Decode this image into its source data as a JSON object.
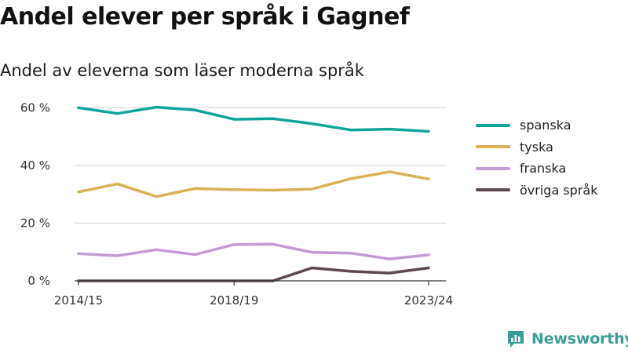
{
  "title": "Andel elever per språk i Gagnef",
  "subtitle": "Andel av eleverna som läser moderna språk",
  "brand": {
    "name": "Newsworthy",
    "icon": "chart-logo-icon",
    "color": "#3a9e97"
  },
  "chart_data": {
    "type": "line",
    "x": [
      "2014/15",
      "2015/16",
      "2016/17",
      "2017/18",
      "2018/19",
      "2019/20",
      "2020/21",
      "2021/22",
      "2022/23",
      "2023/24"
    ],
    "x_tick_labels": [
      "2014/15",
      "2018/19",
      "2023/24"
    ],
    "y_ticks": [
      0,
      20,
      40,
      60
    ],
    "y_tick_labels": [
      "0 %",
      "20 %",
      "40 %",
      "60 %"
    ],
    "ylim": [
      0,
      62
    ],
    "grid": true,
    "legend_position": "right",
    "series": [
      {
        "name": "spanska",
        "color": "#0fa49a",
        "values": [
          60,
          58,
          60.2,
          59.2,
          56,
          56.2,
          54.5,
          52.3,
          52.6,
          51.8
        ]
      },
      {
        "name": "tyska",
        "color": "#dbb155",
        "values": [
          30.8,
          33.6,
          29.2,
          32,
          31.6,
          31.4,
          31.8,
          35.4,
          37.8,
          35.3
        ]
      },
      {
        "name": "franska",
        "color": "#c39bd3",
        "values": [
          9.4,
          8.7,
          10.8,
          9.1,
          12.6,
          12.7,
          9.9,
          9.6,
          7.6,
          9
        ]
      },
      {
        "name": "övriga språk",
        "color": "#5c4753",
        "values": [
          0,
          0,
          0,
          0,
          0,
          0,
          4.5,
          3.3,
          2.7,
          4.5
        ]
      }
    ]
  }
}
